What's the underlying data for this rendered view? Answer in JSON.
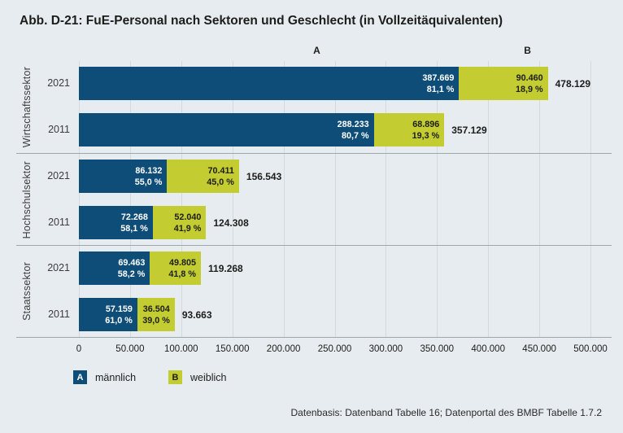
{
  "title": "Abb. D-21: FuE-Personal nach Sektoren und Geschlecht (in Vollzeitäquivalenten)",
  "footer": "Datenbasis: Datenband Tabelle 16; Datenportal des BMBF Tabelle 1.7.2",
  "colors": {
    "background": "#e6ecef",
    "male": "#0e4d78",
    "female": "#c3cc30",
    "gridline": "#d2dade",
    "divider": "#9da8ad"
  },
  "chart_data": {
    "type": "bar",
    "orientation": "horizontal",
    "stacked": true,
    "axis_max": 500000,
    "x_ticks": [
      "0",
      "50.000",
      "100.000",
      "150.000",
      "200.000",
      "250.000",
      "300.000",
      "350.000",
      "400.000",
      "450.000",
      "500.000"
    ],
    "series_headers": {
      "a": "A",
      "b": "B"
    },
    "legend": [
      {
        "marker": "A",
        "label": "männlich"
      },
      {
        "marker": "B",
        "label": "weiblich"
      }
    ],
    "groups": [
      {
        "sector": "Wirtschaftssektor",
        "rows": [
          {
            "year": "2021",
            "male_value": 387669,
            "male_label": "387.669",
            "male_pct": "81,1 %",
            "female_value": 90460,
            "female_label": "90.460",
            "female_pct": "18,9 %",
            "total": 478129,
            "total_label": "478.129"
          },
          {
            "year": "2011",
            "male_value": 288233,
            "male_label": "288.233",
            "male_pct": "80,7 %",
            "female_value": 68896,
            "female_label": "68.896",
            "female_pct": "19,3 %",
            "total": 357129,
            "total_label": "357.129"
          }
        ]
      },
      {
        "sector": "Hochschulsektor",
        "rows": [
          {
            "year": "2021",
            "male_value": 86132,
            "male_label": "86.132",
            "male_pct": "55,0 %",
            "female_value": 70411,
            "female_label": "70.411",
            "female_pct": "45,0 %",
            "total": 156543,
            "total_label": "156.543"
          },
          {
            "year": "2011",
            "male_value": 72268,
            "male_label": "72.268",
            "male_pct": "58,1 %",
            "female_value": 52040,
            "female_label": "52.040",
            "female_pct": "41,9 %",
            "total": 124308,
            "total_label": "124.308"
          }
        ]
      },
      {
        "sector": "Staatssektor",
        "rows": [
          {
            "year": "2021",
            "male_value": 69463,
            "male_label": "69.463",
            "male_pct": "58,2 %",
            "female_value": 49805,
            "female_label": "49.805",
            "female_pct": "41,8 %",
            "total": 119268,
            "total_label": "119.268"
          },
          {
            "year": "2011",
            "male_value": 57159,
            "male_label": "57.159",
            "male_pct": "61,0 %",
            "female_value": 36504,
            "female_label": "36.504",
            "female_pct": "39,0 %",
            "total": 93663,
            "total_label": "93.663"
          }
        ]
      }
    ]
  }
}
